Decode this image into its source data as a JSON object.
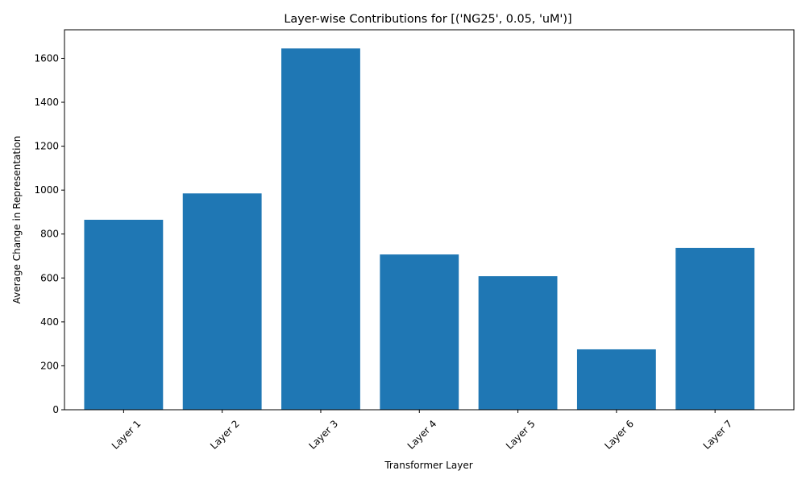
{
  "chart_data": {
    "type": "bar",
    "title": "Layer-wise Contributions for [('NG25', 0.05, 'uM')]",
    "xlabel": "Transformer Layer",
    "ylabel": "Average Change in Representation",
    "categories": [
      "Layer 1",
      "Layer 2",
      "Layer 3",
      "Layer 4",
      "Layer 5",
      "Layer 6",
      "Layer 7"
    ],
    "values": [
      865,
      985,
      1645,
      707,
      608,
      275,
      737
    ],
    "ylim": [
      0,
      1730
    ],
    "yticks": [
      0,
      200,
      400,
      600,
      800,
      1000,
      1200,
      1400,
      1600
    ],
    "grid": false,
    "legend": "none",
    "bar_color": "#1f77b4",
    "x_tick_rotation_deg": 45
  }
}
